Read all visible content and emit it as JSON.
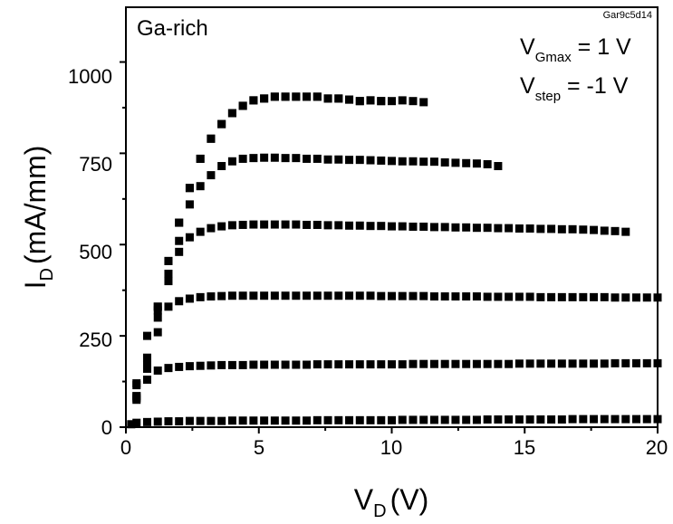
{
  "chart_data": {
    "type": "scatter",
    "title": "",
    "xlabel": {
      "main": "V",
      "sub": "D",
      "unit": "(V)"
    },
    "ylabel": {
      "main": "I",
      "sub": "D",
      "unit": "(mA/mm)"
    },
    "xlim": [
      0,
      20
    ],
    "ylim": [
      0,
      1150
    ],
    "xticks": [
      0,
      5,
      10,
      15,
      20
    ],
    "yticks": [
      0,
      250,
      500,
      750,
      1000
    ],
    "grid": false,
    "marker": "square",
    "color": "#000000",
    "annotations": {
      "condition": "Ga-rich",
      "sample_id": "Gar9c5d14",
      "vgmax": {
        "main": "V",
        "sub": "Gmax",
        "rest": " = 1 V"
      },
      "vstep": {
        "main": "V",
        "sub": "step",
        "rest": " = -1 V"
      }
    },
    "series": [
      {
        "x": [
          0.4,
          0.8,
          1.2,
          1.6,
          2.0,
          2.4,
          2.8,
          3.2,
          3.6,
          4.0,
          4.4,
          4.8,
          5.2,
          5.6,
          6.0,
          6.4,
          6.8,
          7.2,
          7.6,
          8.0,
          8.4,
          8.8,
          9.2,
          9.6
        ],
        "y": [
          85,
          190,
          330,
          455,
          560,
          655,
          735,
          790,
          830,
          860,
          880,
          895,
          900,
          905,
          905,
          905,
          905,
          905,
          900,
          900,
          897,
          893,
          895,
          893
        ]
      },
      {
        "x": [
          0.4,
          0.8,
          1.2,
          1.6,
          2.0,
          2.4,
          2.8,
          3.2,
          3.6,
          4.0,
          4.4,
          4.8,
          5.2,
          5.6,
          6.0,
          6.4,
          6.8,
          7.2,
          7.6,
          8.0,
          8.4,
          8.8,
          9.2,
          9.6,
          10.0,
          10.4,
          10.8,
          11.2
        ],
        "y": [
          85,
          190,
          330,
          455,
          560,
          655,
          735,
          790,
          830,
          860,
          880,
          895,
          900,
          905,
          905,
          905,
          905,
          905,
          900,
          900,
          897,
          893,
          895,
          893,
          893,
          895,
          893,
          890
        ]
      },
      {
        "x": [
          0.4,
          0.8,
          1.2,
          1.6,
          2.0,
          2.4,
          2.8,
          3.2,
          3.6,
          4.0,
          4.4,
          4.8,
          5.2,
          5.6,
          6.0,
          6.4,
          6.8,
          7.2,
          7.6,
          8.0,
          8.4,
          8.8,
          9.2,
          9.6,
          10.0,
          10.4,
          10.8,
          11.2,
          11.6,
          12.0,
          12.4,
          12.8,
          13.2,
          13.6,
          14.0
        ],
        "y": [
          80,
          170,
          300,
          420,
          510,
          610,
          660,
          690,
          715,
          728,
          735,
          737,
          738,
          738,
          737,
          737,
          735,
          735,
          733,
          733,
          732,
          732,
          731,
          730,
          729,
          728,
          728,
          727,
          727,
          725,
          724,
          723,
          722,
          720,
          715
        ]
      },
      {
        "x": [
          0.4,
          0.8,
          1.2,
          1.6,
          2.0,
          2.4,
          2.8,
          3.2,
          3.6,
          4.0,
          4.4,
          4.8,
          5.2,
          5.6,
          6.0,
          6.4,
          6.8,
          7.2,
          7.6,
          8.0,
          8.4,
          8.8,
          9.2,
          9.6,
          10.0,
          10.4,
          10.8,
          11.2,
          11.6,
          12.0,
          12.4,
          12.8,
          13.2,
          13.6,
          14.0,
          14.4,
          14.8,
          15.2,
          15.6,
          16.0,
          16.4,
          16.8,
          17.2,
          17.6,
          18.0,
          18.4,
          18.8
        ],
        "y": [
          75,
          160,
          260,
          400,
          480,
          520,
          535,
          545,
          550,
          553,
          554,
          555,
          555,
          555,
          555,
          555,
          554,
          554,
          553,
          553,
          552,
          552,
          551,
          551,
          550,
          550,
          549,
          549,
          548,
          548,
          547,
          547,
          546,
          546,
          545,
          545,
          544,
          544,
          543,
          543,
          542,
          542,
          541,
          540,
          538,
          537,
          535
        ]
      },
      {
        "x": [
          0.4,
          0.8,
          1.2,
          1.6,
          2.0,
          2.4,
          2.8,
          3.2,
          3.6,
          4.0,
          4.4,
          4.8,
          5.2,
          5.6,
          6.0,
          6.4,
          6.8,
          7.2,
          7.6,
          8.0,
          8.4,
          8.8,
          9.2,
          9.6,
          10.0,
          10.4,
          10.8,
          11.2,
          11.6,
          12.0,
          12.4,
          12.8,
          13.2,
          13.6,
          14.0,
          14.4,
          14.8,
          15.2,
          15.6,
          16.0,
          16.4,
          16.8,
          17.2,
          17.6,
          18.0,
          18.4,
          18.8,
          19.2,
          19.6,
          20.0
        ],
        "y": [
          120,
          250,
          320,
          330,
          345,
          352,
          356,
          358,
          359,
          360,
          360,
          360,
          360,
          360,
          360,
          360,
          360,
          360,
          360,
          360,
          360,
          360,
          360,
          359,
          359,
          359,
          359,
          359,
          358,
          358,
          358,
          358,
          358,
          357,
          357,
          357,
          357,
          357,
          356,
          356,
          356,
          356,
          356,
          356,
          356,
          355,
          355,
          355,
          355,
          355
        ]
      },
      {
        "x": [
          0.4,
          0.8,
          1.2,
          1.6,
          2.0,
          2.4,
          2.8,
          3.2,
          3.6,
          4.0,
          4.4,
          4.8,
          5.2,
          5.6,
          6.0,
          6.4,
          6.8,
          7.2,
          7.6,
          8.0,
          8.4,
          8.8,
          9.2,
          9.6,
          10.0,
          10.4,
          10.8,
          11.2,
          11.6,
          12.0,
          12.4,
          12.8,
          13.2,
          13.6,
          14.0,
          14.4,
          14.8,
          15.2,
          15.6,
          16.0,
          16.4,
          16.8,
          17.2,
          17.6,
          18.0,
          18.4,
          18.8,
          19.2,
          19.6,
          20.0
        ],
        "y": [
          115,
          130,
          155,
          162,
          165,
          167,
          168,
          169,
          170,
          170,
          170,
          171,
          171,
          171,
          171,
          171,
          171,
          172,
          172,
          172,
          172,
          172,
          172,
          172,
          172,
          172,
          173,
          173,
          173,
          173,
          173,
          173,
          173,
          173,
          173,
          173,
          174,
          174,
          174,
          174,
          174,
          174,
          174,
          174,
          174,
          175,
          175,
          175,
          175,
          175
        ]
      },
      {
        "x": [
          0.2,
          0.4,
          0.8,
          1.2,
          1.6,
          2.0,
          2.4,
          2.8,
          3.2,
          3.6,
          4.0,
          4.4,
          4.8,
          5.2,
          5.6,
          6.0,
          6.4,
          6.8,
          7.2,
          7.6,
          8.0,
          8.4,
          8.8,
          9.2,
          9.6,
          10.0,
          10.4,
          10.8,
          11.2,
          11.6,
          12.0,
          12.4,
          12.8,
          13.2,
          13.6,
          14.0,
          14.4,
          14.8,
          15.2,
          15.6,
          16.0,
          16.4,
          16.8,
          17.2,
          17.6,
          18.0,
          18.4,
          18.8,
          19.2,
          19.6,
          20.0
        ],
        "y": [
          8,
          12,
          14,
          15,
          16,
          16,
          17,
          17,
          17,
          17,
          18,
          18,
          18,
          18,
          18,
          18,
          18,
          18,
          19,
          19,
          19,
          19,
          19,
          19,
          19,
          19,
          20,
          20,
          20,
          20,
          20,
          20,
          20,
          20,
          21,
          21,
          21,
          21,
          21,
          21,
          21,
          21,
          22,
          22,
          22,
          22,
          22,
          22,
          22,
          22,
          22
        ]
      }
    ]
  }
}
